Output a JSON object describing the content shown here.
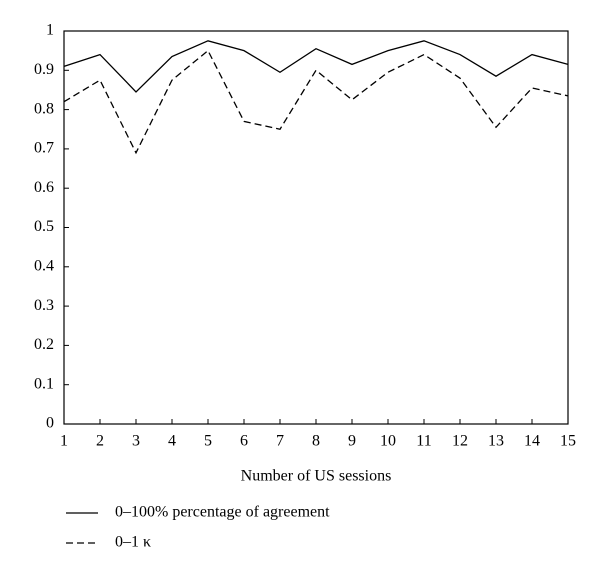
{
  "chart_data": {
    "type": "line",
    "x": [
      1,
      2,
      3,
      4,
      5,
      6,
      7,
      8,
      9,
      10,
      11,
      12,
      13,
      14,
      15
    ],
    "series": [
      {
        "name": "0–100% percentage of agreement",
        "color": "#000000",
        "dash": "solid",
        "values": [
          0.91,
          0.94,
          0.845,
          0.935,
          0.975,
          0.95,
          0.895,
          0.955,
          0.915,
          0.95,
          0.975,
          0.94,
          0.885,
          0.94,
          0.915
        ]
      },
      {
        "name": "0–1 κ",
        "color": "#000000",
        "dash": "dashed",
        "values": [
          0.82,
          0.875,
          0.69,
          0.875,
          0.95,
          0.77,
          0.75,
          0.9,
          0.825,
          0.895,
          0.94,
          0.88,
          0.755,
          0.855,
          0.835
        ]
      }
    ],
    "xlabel": "Number of US sessions",
    "xlim": [
      1,
      15
    ],
    "xticks": [
      1,
      2,
      3,
      4,
      5,
      6,
      7,
      8,
      9,
      10,
      11,
      12,
      13,
      14,
      15
    ],
    "ylim": [
      0,
      1
    ],
    "yticks": [
      0,
      0.1,
      0.2,
      0.3,
      0.4,
      0.5,
      0.6,
      0.7,
      0.8,
      0.9,
      1
    ],
    "grid": false,
    "legend": "bottom"
  }
}
